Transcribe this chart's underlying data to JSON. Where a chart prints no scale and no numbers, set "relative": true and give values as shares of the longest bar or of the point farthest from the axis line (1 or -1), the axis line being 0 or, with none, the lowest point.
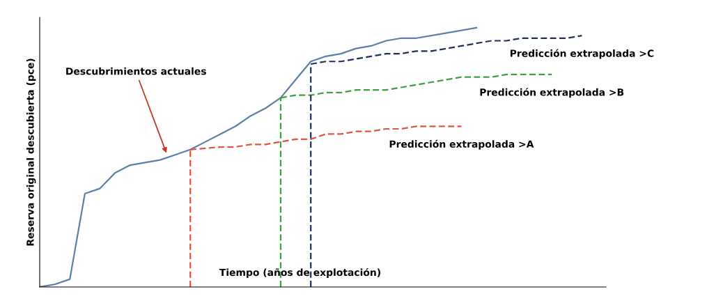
{
  "chart_data": {
    "type": "line",
    "relative": true,
    "xlabel": "Tiempo (años de explotación)",
    "ylabel": "Reserva original descubierta (pce)",
    "annotations": [
      "Descubrimientos actuales"
    ],
    "categories": [
      null,
      null,
      null,
      null,
      null,
      null,
      null,
      null,
      null,
      null,
      null,
      null,
      null,
      null,
      null,
      null,
      null,
      null,
      null,
      null,
      null,
      null,
      null,
      null,
      null,
      null,
      null,
      null,
      null,
      null,
      null,
      null,
      null,
      null,
      null,
      null,
      null
    ],
    "series": [
      {
        "color": "#5b7fa8",
        "line_style": "solid",
        "values": [
          0,
          0.01,
          0.03,
          0.36,
          0.38,
          0.44,
          0.47,
          0.48,
          0.49,
          0.51,
          0.53,
          0.56,
          0.59,
          0.62,
          0.66,
          0.69,
          0.73,
          0.8,
          0.87,
          0.89,
          0.9,
          0.92,
          0.93,
          0.95,
          0.96,
          0.96,
          0.97,
          0.98,
          0.99,
          1.0,
          null,
          null,
          null,
          null,
          null,
          null,
          null
        ]
      },
      {
        "name": "Predicción extrapolada >A",
        "color": "#e0533f",
        "line_style": "dashed",
        "values": [
          null,
          null,
          null,
          null,
          null,
          null,
          null,
          null,
          null,
          null,
          0.53,
          0.535,
          0.54,
          0.54,
          0.55,
          0.55,
          0.56,
          0.57,
          0.57,
          0.59,
          0.59,
          0.6,
          0.6,
          0.61,
          0.61,
          0.62,
          0.62,
          0.62,
          0.62,
          null,
          null,
          null,
          null,
          null,
          null,
          null,
          null
        ]
      },
      {
        "name": "Predicción extrapolada >B",
        "color": "#3fa03f",
        "line_style": "dashed",
        "values": [
          null,
          null,
          null,
          null,
          null,
          null,
          null,
          null,
          null,
          null,
          null,
          null,
          null,
          null,
          null,
          null,
          0.73,
          0.74,
          0.74,
          0.75,
          0.75,
          0.76,
          0.76,
          0.76,
          0.77,
          0.78,
          0.79,
          0.8,
          0.81,
          0.81,
          0.81,
          0.82,
          0.82,
          0.82,
          0.82,
          null,
          null
        ]
      },
      {
        "name": "Predicción extrapolada >C",
        "color": "#1f2f5f",
        "line_style": "dashed",
        "values": [
          null,
          null,
          null,
          null,
          null,
          null,
          null,
          null,
          null,
          null,
          null,
          null,
          null,
          null,
          null,
          null,
          null,
          null,
          0.86,
          0.87,
          0.87,
          0.88,
          0.89,
          0.9,
          0.9,
          0.91,
          0.91,
          0.92,
          0.93,
          0.94,
          0.95,
          0.95,
          0.96,
          0.96,
          0.96,
          0.96,
          0.97
        ]
      }
    ]
  }
}
